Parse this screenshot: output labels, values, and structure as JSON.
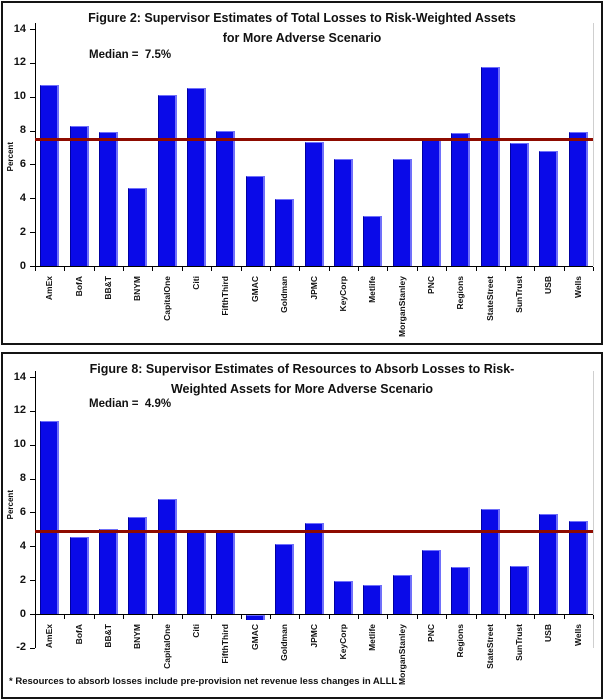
{
  "colors": {
    "bar_fill": "#0a0ae8",
    "bar_edge_light": "#7070fa",
    "bar_edge_dark": "#0000a0",
    "median_line": "#8e0b00",
    "axis": "#000000"
  },
  "chart_data": [
    {
      "type": "bar",
      "title_line1": "Figure 2: Supervisor Estimates of Total Losses to Risk-Weighted Assets",
      "title_line2": "for More Adverse Scenario",
      "median_label": "Median =  7.5%",
      "median_value": 7.5,
      "ylabel": "Percent",
      "ylim": [
        0,
        14
      ],
      "ytick_step": 2,
      "grid": false,
      "legend": "none",
      "categories": [
        "AmEx",
        "BofA",
        "BB&T",
        "BNYM",
        "CapitalOne",
        "Citi",
        "FifthThird",
        "GMAC",
        "Goldman",
        "JPMC",
        "KeyCorp",
        "Metlife",
        "MorganStanley",
        "PNC",
        "Regions",
        "StateStreet",
        "SunTrust",
        "USB",
        "Wells"
      ],
      "values": [
        10.7,
        8.3,
        7.9,
        4.6,
        10.1,
        10.5,
        8.0,
        5.3,
        3.95,
        7.3,
        6.3,
        2.95,
        6.3,
        7.5,
        7.85,
        11.75,
        7.25,
        6.8,
        7.9
      ]
    },
    {
      "type": "bar",
      "title_line1": "Figure 8: Supervisor Estimates of Resources to Absorb Losses to Risk-",
      "title_line2": "Weighted Assets for More Adverse Scenario",
      "median_label": "Median =  4.9%",
      "median_value": 4.9,
      "ylabel": "Percent",
      "ylim": [
        -2,
        14
      ],
      "ytick_step": 2,
      "grid": false,
      "legend": "none",
      "categories": [
        "AmEx",
        "BofA",
        "BB&T",
        "BNYM",
        "CapitalOne",
        "Citi",
        "FifthThird",
        "GMAC",
        "Goldman",
        "JPMC",
        "KeyCorp",
        "Metlife",
        "MorganStanley",
        "PNC",
        "Regions",
        "StateStreet",
        "SunTrust",
        "USB",
        "Wells"
      ],
      "values": [
        11.4,
        4.55,
        5.05,
        5.75,
        6.8,
        4.85,
        4.85,
        -0.3,
        4.15,
        5.4,
        1.95,
        1.7,
        2.3,
        3.8,
        2.8,
        6.2,
        2.85,
        5.9,
        5.5
      ],
      "footnote": "* Resources to absorb losses include pre-provision net revenue less changes in ALLL"
    }
  ]
}
